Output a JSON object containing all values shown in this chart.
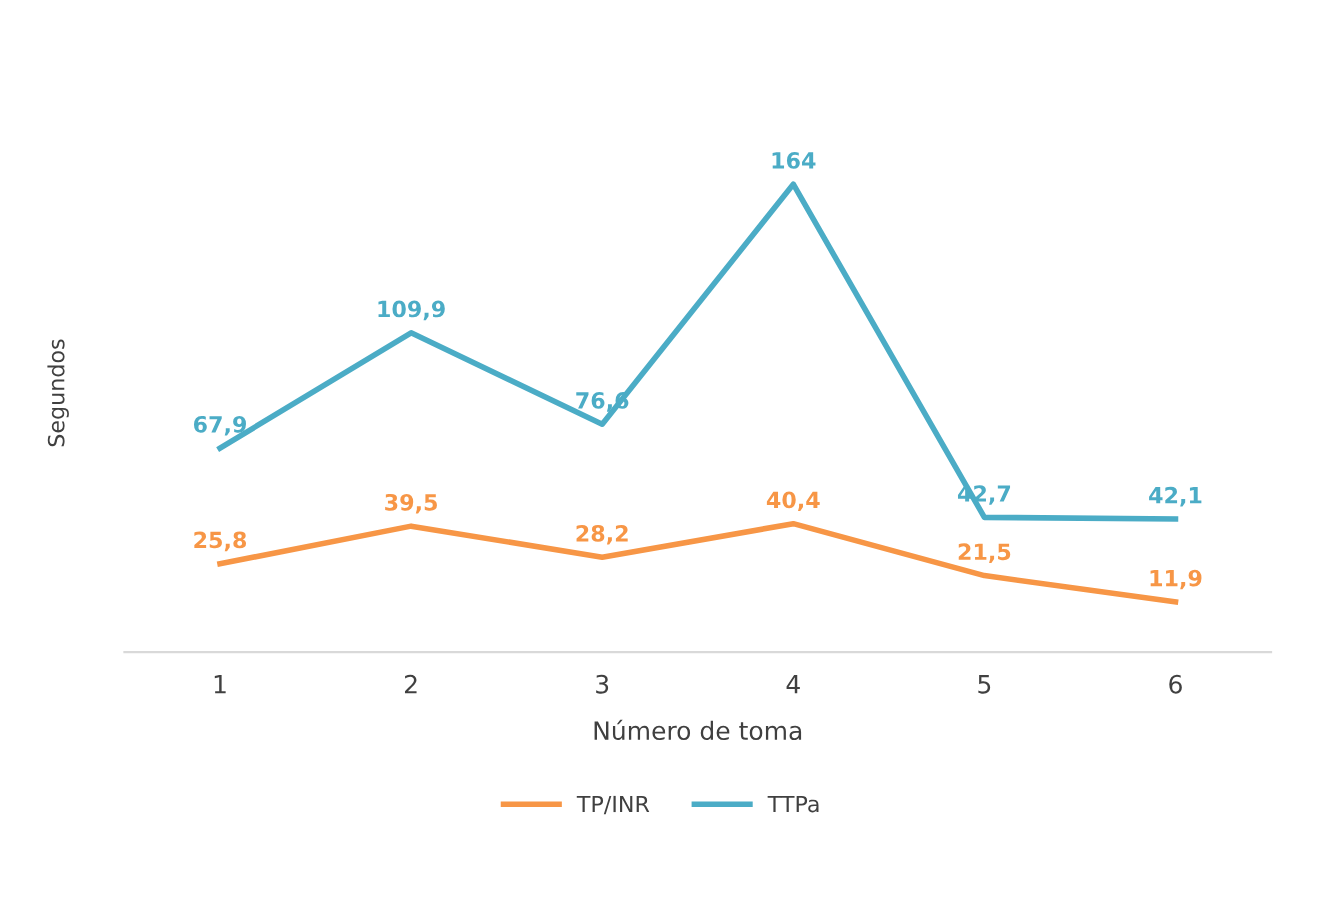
{
  "chart_data": {
    "type": "line",
    "xlabel": "Número de toma",
    "ylabel": "Segundos",
    "categories": [
      "1",
      "2",
      "3",
      "4",
      "5",
      "6"
    ],
    "series": [
      {
        "name": "TP/INR",
        "color": "#f79646",
        "values": [
          25.8,
          39.5,
          28.2,
          40.4,
          21.5,
          11.9
        ],
        "value_labels": [
          "25,8",
          "39,5",
          "28,2",
          "40,4",
          "21,5",
          "11,9"
        ]
      },
      {
        "name": "TTPa",
        "color": "#4bacc6",
        "values": [
          67.9,
          109.9,
          76.6,
          164,
          42.7,
          42.1
        ],
        "value_labels": [
          "67,9",
          "109,9",
          "76,6",
          "164",
          "42,7",
          "42,1"
        ]
      }
    ],
    "tick_labels": "x",
    "grid": false,
    "legend": "bottom",
    "line_style": "solid"
  }
}
